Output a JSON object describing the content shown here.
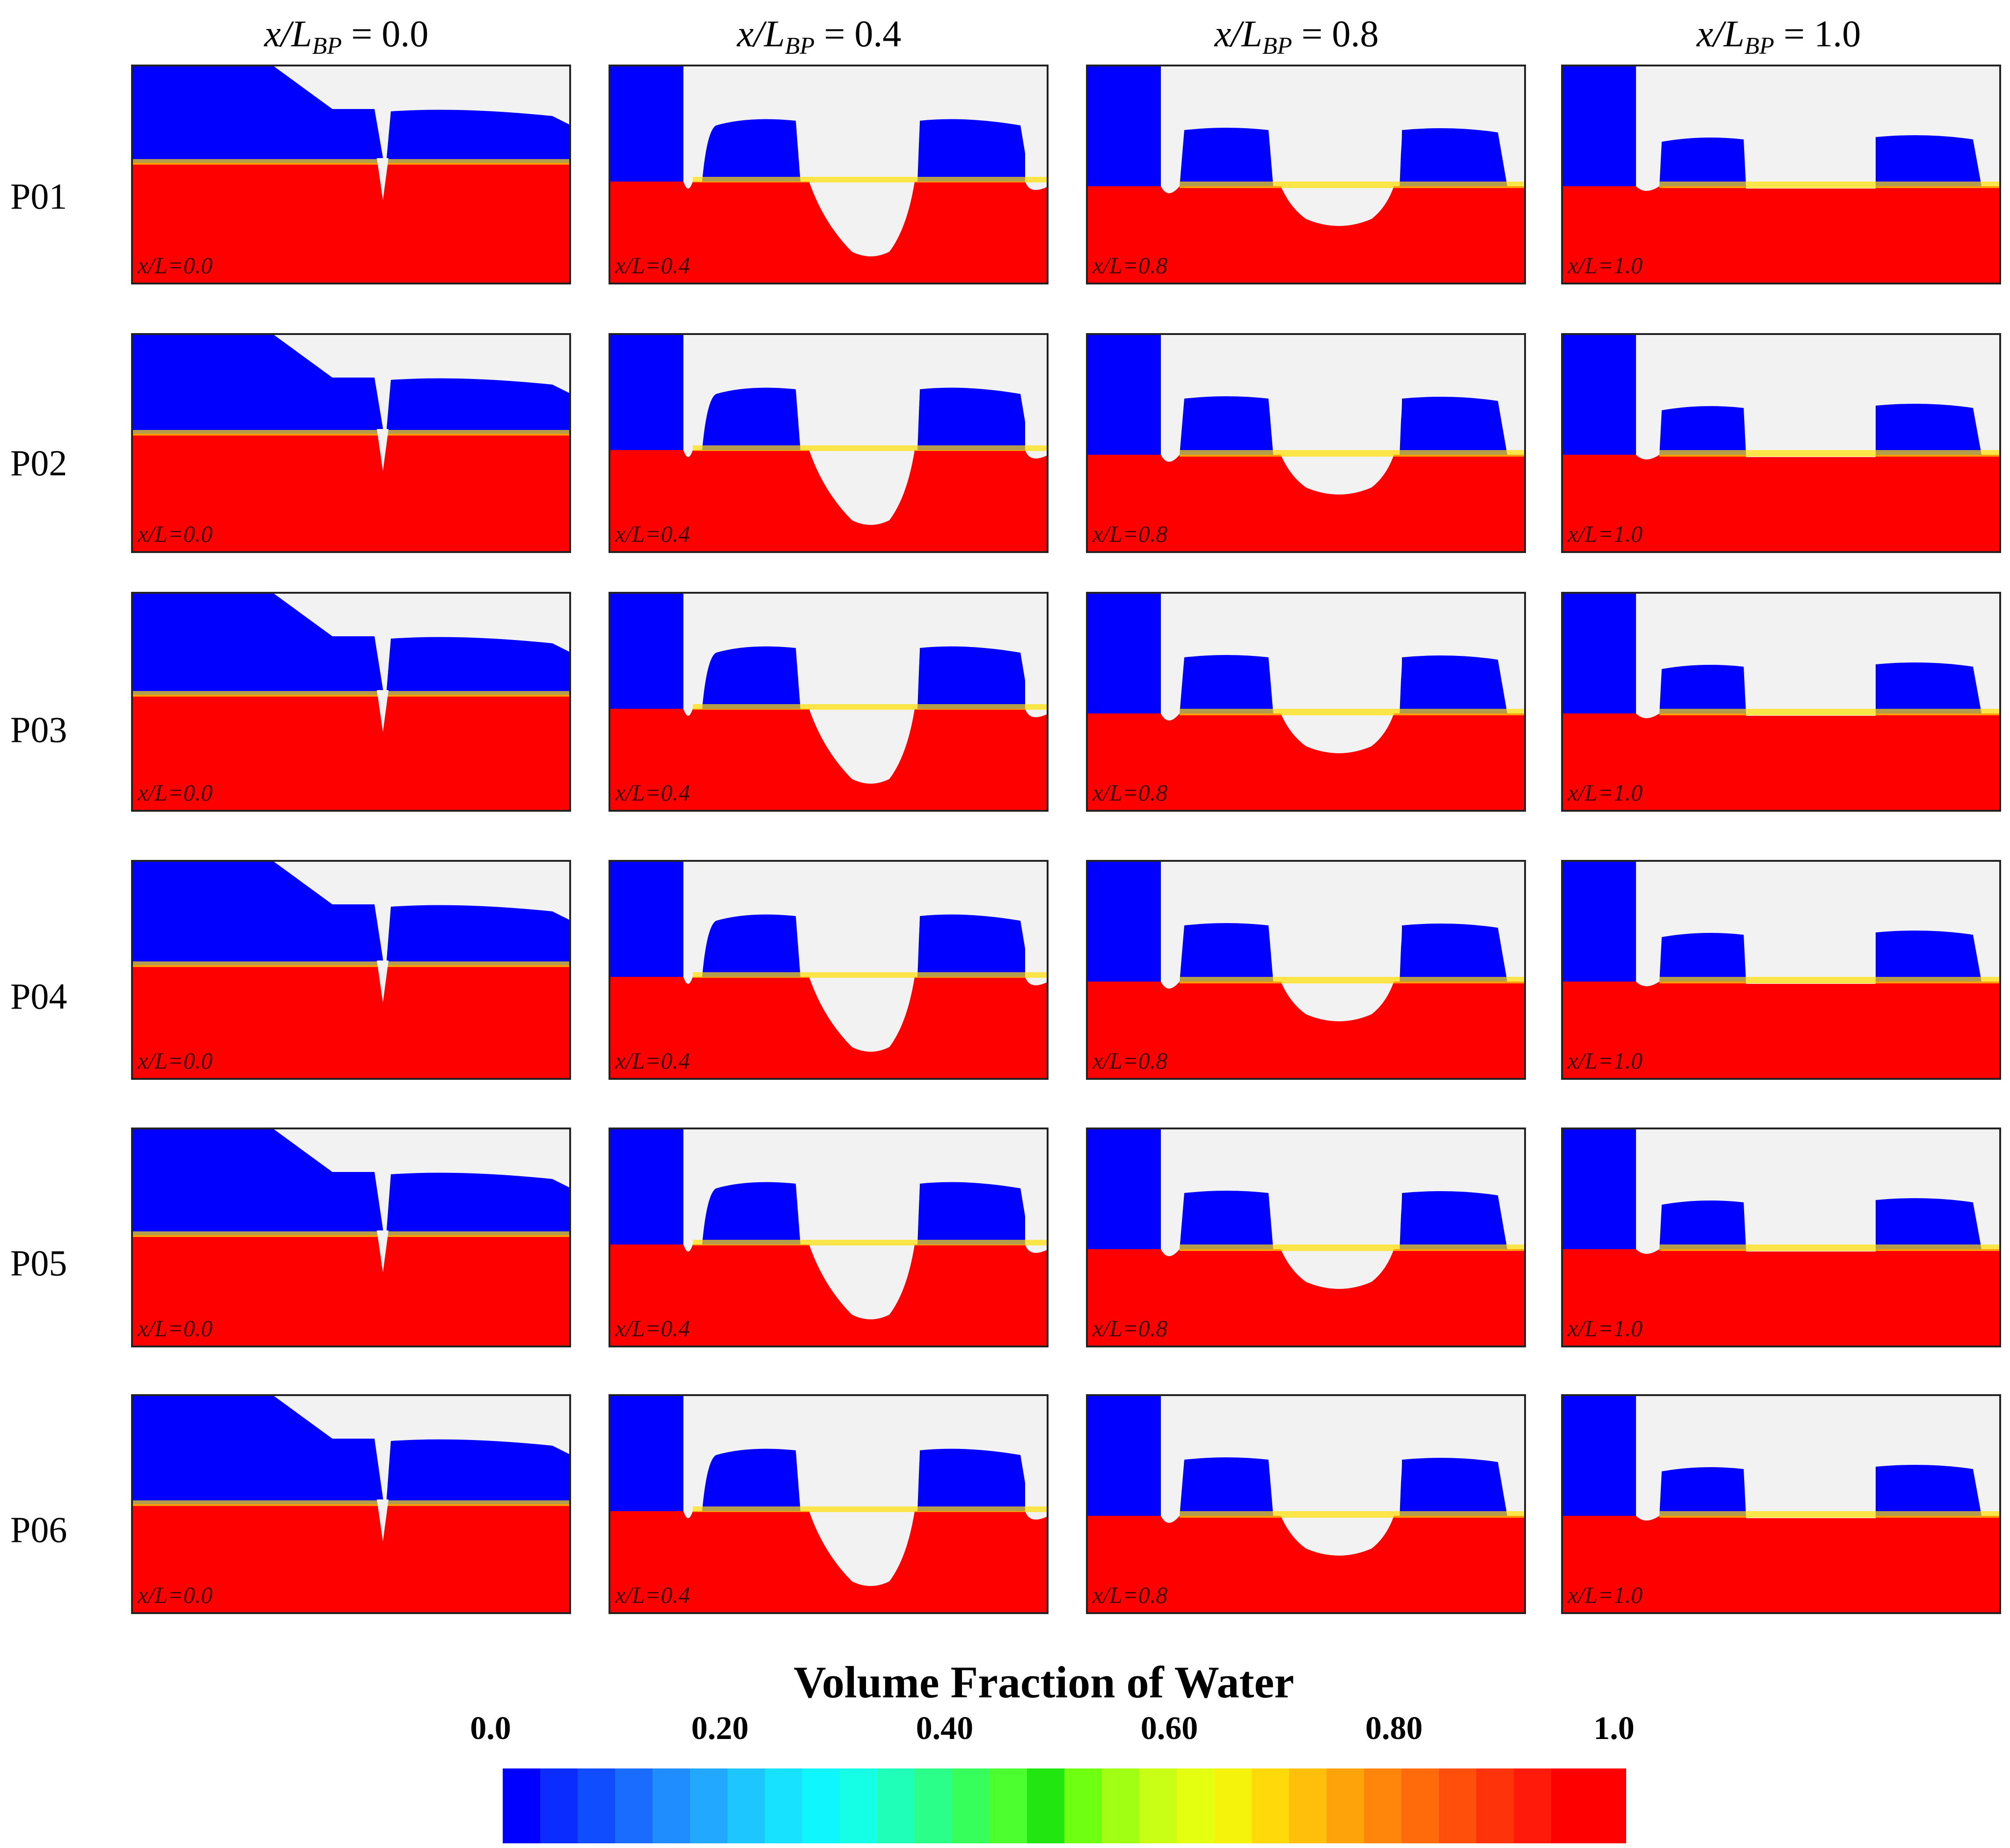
{
  "figure": {
    "column_headers": [
      {
        "prefix": "x/L",
        "sub": "BP",
        "value": " = 0.0"
      },
      {
        "prefix": "x/L",
        "sub": "BP",
        "value": " = 0.4"
      },
      {
        "prefix": "x/L",
        "sub": "BP",
        "value": " = 0.8"
      },
      {
        "prefix": "x/L",
        "sub": "BP",
        "value": " = 1.0"
      }
    ],
    "row_labels": [
      "P01",
      "P02",
      "P03",
      "P04",
      "P05",
      "P06"
    ],
    "panel_tags": [
      "x/L=0.0",
      "x/L=0.4",
      "x/L=0.8",
      "x/L=1.0"
    ]
  },
  "colorbar": {
    "title": "Volume Fraction of Water",
    "ticks": [
      "0.0",
      "0.20",
      "0.40",
      "0.60",
      "0.80",
      "1.0"
    ],
    "bands": [
      "#0000ff",
      "#0a2cff",
      "#0f4dff",
      "#1a6cff",
      "#1f8cff",
      "#22a9ff",
      "#1ec6ff",
      "#17e2ff",
      "#10f6ff",
      "#14ffe6",
      "#1fffb8",
      "#2aff8a",
      "#36ff5c",
      "#4cff2e",
      "#21e60f",
      "#6fff10",
      "#a0ff12",
      "#c8ff14",
      "#e4ff10",
      "#f5f20c",
      "#ffd90a",
      "#ffbf0a",
      "#ffa30a",
      "#ff860a",
      "#ff6a0a",
      "#ff4f0a",
      "#ff330a",
      "#ff1a0a",
      "#ff0000",
      "#ff0000"
    ]
  },
  "colors": {
    "air": "#0000ff",
    "water": "#ff0000",
    "hull": "#f2f2f2",
    "interface": "#ffe000"
  }
}
